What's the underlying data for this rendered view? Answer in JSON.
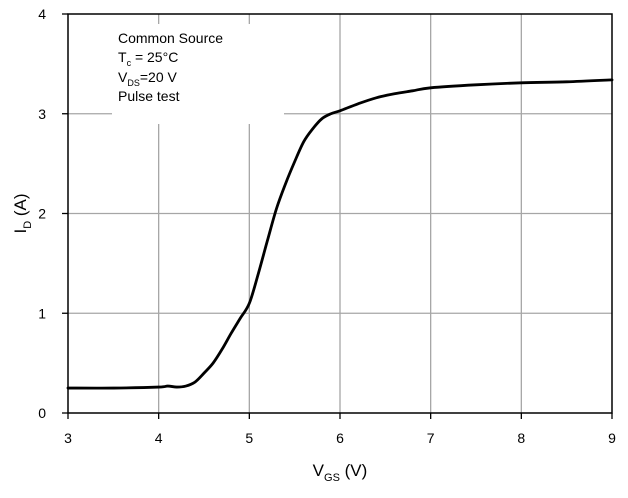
{
  "chart_data": {
    "type": "line",
    "xlabel": {
      "main": "V",
      "sub": "GS",
      "unit": " (V)"
    },
    "ylabel": {
      "main": "I",
      "sub": "D",
      "unit": " (A)"
    },
    "xlim": [
      3,
      9
    ],
    "ylim": [
      0,
      4
    ],
    "x_ticks": [
      "3",
      "4",
      "5",
      "6",
      "7",
      "8",
      "9"
    ],
    "y_ticks": [
      "0",
      "1",
      "2",
      "3",
      "4"
    ],
    "grid": true,
    "annotation": {
      "line1": "Common Source",
      "line2_main": "T",
      "line2_sub": "c",
      "line2_rest": " = 25°C",
      "line3_main": "V",
      "line3_sub": "DS",
      "line3_rest": "=20 V",
      "line4": "Pulse test"
    },
    "series": [
      {
        "x": [
          3.0,
          3.5,
          4.0,
          4.1,
          4.2,
          4.3,
          4.4,
          4.5,
          4.6,
          4.7,
          4.8,
          4.9,
          5.0,
          5.1,
          5.2,
          5.3,
          5.4,
          5.5,
          5.6,
          5.7,
          5.8,
          5.9,
          6.0,
          6.2,
          6.4,
          6.6,
          6.8,
          7.0,
          7.5,
          8.0,
          8.5,
          9.0
        ],
        "y": [
          0.25,
          0.25,
          0.26,
          0.27,
          0.26,
          0.27,
          0.31,
          0.4,
          0.5,
          0.64,
          0.8,
          0.95,
          1.1,
          1.4,
          1.73,
          2.05,
          2.3,
          2.52,
          2.72,
          2.85,
          2.95,
          3.0,
          3.03,
          3.1,
          3.16,
          3.2,
          3.23,
          3.26,
          3.29,
          3.31,
          3.32,
          3.34
        ]
      }
    ]
  }
}
